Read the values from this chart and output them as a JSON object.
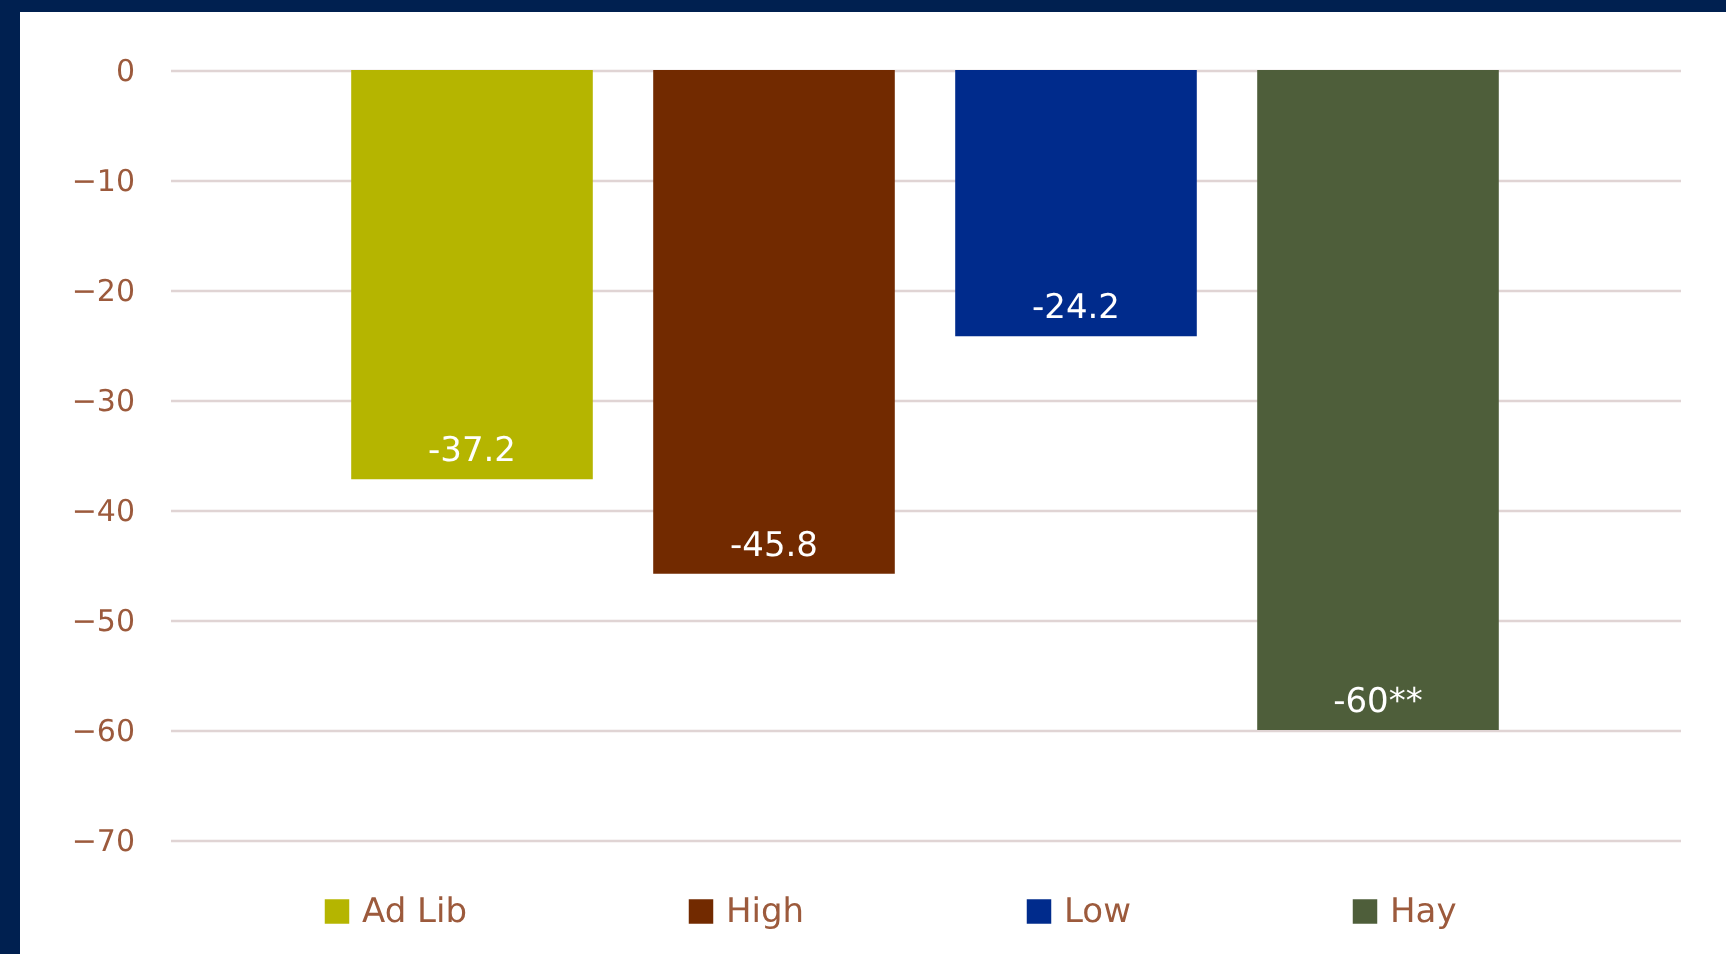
{
  "chart_data": {
    "type": "bar",
    "categories": [
      null
    ],
    "series": [
      {
        "name": "Ad Lib",
        "color": "#b5b500",
        "values": [
          -37.2
        ],
        "value_labels": [
          "-37.2"
        ]
      },
      {
        "name": "High",
        "color": "#722a00",
        "values": [
          -45.8
        ],
        "value_labels": [
          "-45.8"
        ]
      },
      {
        "name": "Low",
        "color": "#002b8c",
        "values": [
          -24.2
        ],
        "value_labels": [
          "-24.2"
        ]
      },
      {
        "name": "Hay",
        "color": "#4e5e3a",
        "values": [
          -60
        ],
        "value_labels": [
          "-60**"
        ]
      }
    ],
    "ylim": [
      -70,
      0
    ],
    "yticks": [
      0,
      -10,
      -20,
      -30,
      -40,
      -50,
      -60,
      -70
    ],
    "grid": "y",
    "legend": "bottom"
  }
}
